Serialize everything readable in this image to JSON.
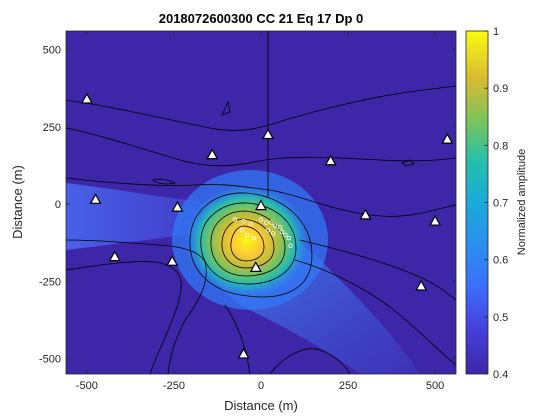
{
  "chart_data": {
    "type": "heatmap",
    "title": "2018072600300 CC 21 Eq 17 Dp 0",
    "xlabel": "Distance (m)",
    "ylabel": "Distance (m)",
    "xlim": [
      -560,
      560
    ],
    "ylim": [
      -550,
      560
    ],
    "xticks": [
      -500,
      -250,
      0,
      250,
      500
    ],
    "xtick_labels": [
      "-500",
      "-250",
      "0",
      "250",
      "500"
    ],
    "yticks": [
      500,
      250,
      0,
      -250,
      -500
    ],
    "ytick_labels": [
      "500",
      "250",
      "0",
      "-250",
      "-500"
    ],
    "colorbar": {
      "label": "Normalized amplitude",
      "range": [
        0.4,
        1.0
      ],
      "ticks": [
        1,
        0.9,
        0.8,
        0.7,
        0.6,
        0.5,
        0.4
      ],
      "tick_labels": [
        "1",
        "0.9",
        "0.8",
        "0.7",
        "0.6",
        "0.5",
        "0.4"
      ]
    },
    "peak": {
      "x": -50,
      "y": -130,
      "value": 1.0
    },
    "stations": [
      {
        "x": -500,
        "y": 340
      },
      {
        "x": 20,
        "y": 225
      },
      {
        "x": -140,
        "y": 160
      },
      {
        "x": 200,
        "y": 140
      },
      {
        "x": 535,
        "y": 210
      },
      {
        "x": -475,
        "y": 15
      },
      {
        "x": -240,
        "y": -10
      },
      {
        "x": 0,
        "y": -5
      },
      {
        "x": 300,
        "y": -35
      },
      {
        "x": 500,
        "y": -55
      },
      {
        "x": -420,
        "y": -170
      },
      {
        "x": -255,
        "y": -185
      },
      {
        "x": -15,
        "y": -205
      },
      {
        "x": 460,
        "y": -265
      },
      {
        "x": -50,
        "y": -485
      }
    ],
    "events": [
      {
        "x": -75,
        "y": -50
      },
      {
        "x": -50,
        "y": -55
      },
      {
        "x": -30,
        "y": -65
      },
      {
        "x": 0,
        "y": -50
      },
      {
        "x": 15,
        "y": -60
      },
      {
        "x": 30,
        "y": -60
      },
      {
        "x": 40,
        "y": -70
      },
      {
        "x": 55,
        "y": -75
      },
      {
        "x": 60,
        "y": -90
      },
      {
        "x": 70,
        "y": -100
      },
      {
        "x": 80,
        "y": -110
      },
      {
        "x": 85,
        "y": -135
      },
      {
        "x": -55,
        "y": -85
      },
      {
        "x": -40,
        "y": -100
      },
      {
        "x": -20,
        "y": -110
      },
      {
        "x": 20,
        "y": -85
      },
      {
        "x": 35,
        "y": -95
      }
    ],
    "colors": {
      "background": "#3e26a8",
      "contour": "#000000",
      "station_fill": "#ffffff",
      "event_stroke": "#ffffff"
    }
  }
}
